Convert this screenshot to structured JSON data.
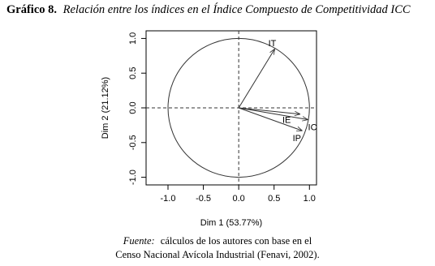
{
  "chart_data": {
    "type": "vector",
    "title_label": "Gráfico 8.",
    "title": "Relación entre los índices en el Índice Compuesto de Competitividad ICC",
    "x_label": "Dim 1 (53.77%)",
    "y_label": "Dim 2 (21.12%)",
    "source_label": "Fuente:",
    "source": [
      "cálculos de los autores con base en el",
      "Censo Nacional Avícola Industrial (Fenavi, 2002)."
    ],
    "point_labels": [
      "IT",
      "IE",
      "IC",
      "IP"
    ],
    "x": [
      0.51,
      0.87,
      0.98,
      0.9
    ],
    "values": [
      0.85,
      -0.09,
      -0.17,
      -0.33
    ],
    "color": "#333333",
    "xlim": [
      -1.31,
      1.1
    ],
    "ylim": [
      -1.11,
      1.11
    ],
    "xticks": [
      {
        "value": -1,
        "label": "-1.0"
      },
      -0.5,
      {
        "value": 0,
        "label": "0.0"
      },
      0.5,
      {
        "value": 1,
        "label": "1.0"
      }
    ],
    "yticks": [
      {
        "value": -1,
        "label": "-1.0"
      },
      -0.5,
      {
        "value": 0,
        "label": "0.0"
      },
      0.5,
      {
        "value": 1,
        "label": "1.0"
      }
    ]
  }
}
